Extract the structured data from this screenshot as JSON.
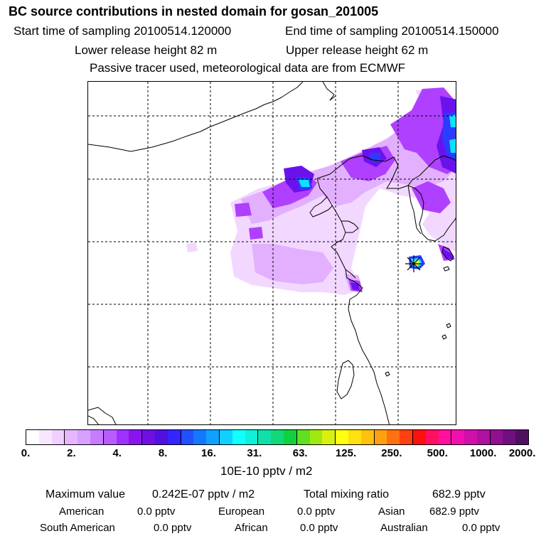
{
  "header": {
    "title": "BC  source contributions in nested domain for gosan_201005",
    "start_time": "Start time of sampling 20100514.120000",
    "end_time": "End time of sampling 20100514.150000",
    "lower_release": "Lower release height   82 m",
    "upper_release": "Upper release height   62 m",
    "tracer_note": "Passive tracer used, meteorological data are from ECMWF"
  },
  "colorbar": {
    "colors": [
      "#ffffff",
      "#f8e8ff",
      "#f0d0ff",
      "#e6b6ff",
      "#d8a0ff",
      "#c77cff",
      "#b85cff",
      "#a030ff",
      "#8a14f0",
      "#7010e0",
      "#5010e0",
      "#3424ff",
      "#2050ff",
      "#1478ff",
      "#10a0ff",
      "#10d0ff",
      "#10ffff",
      "#10f0d8",
      "#10e0a8",
      "#10d878",
      "#10d040",
      "#60e020",
      "#a0e810",
      "#d8f010",
      "#ffff10",
      "#ffe010",
      "#ffc010",
      "#ffa010",
      "#ff7010",
      "#ff4010",
      "#ff1010",
      "#ff1060",
      "#ff10a0",
      "#f010b0",
      "#d010a8",
      "#b010a0",
      "#901090",
      "#701080",
      "#501060"
    ],
    "tick_labels": [
      "0.",
      "2.",
      "4.",
      "8.",
      "16.",
      "31.",
      "63.",
      "125.",
      "250.",
      "500.",
      "1000.",
      "2000."
    ],
    "units": "10E-10 pptv / m2"
  },
  "stats": {
    "max_label": "Maximum value",
    "max_value": "0.242E-07 pptv / m2",
    "total_label": "Total mixing ratio",
    "total_value": "682.9 pptv",
    "regions": [
      {
        "name": "American",
        "value": "0.0 pptv"
      },
      {
        "name": "European",
        "value": "0.0 pptv"
      },
      {
        "name": "Asian",
        "value": "682.9 pptv"
      },
      {
        "name": "South American",
        "value": "0.0 pptv"
      },
      {
        "name": "African",
        "value": "0.0 pptv"
      },
      {
        "name": "Australian",
        "value": "0.0 pptv"
      }
    ]
  },
  "map": {
    "receptor_marker": "receptor-star-icon",
    "plume_colors": {
      "light": "#f2d8ff",
      "mid": "#e2b0ff",
      "purple": "#b040ff",
      "deep": "#6a12ee",
      "blue": "#2a3cff",
      "cyan": "#10e0ff",
      "hotspot": "#ffff30"
    }
  }
}
